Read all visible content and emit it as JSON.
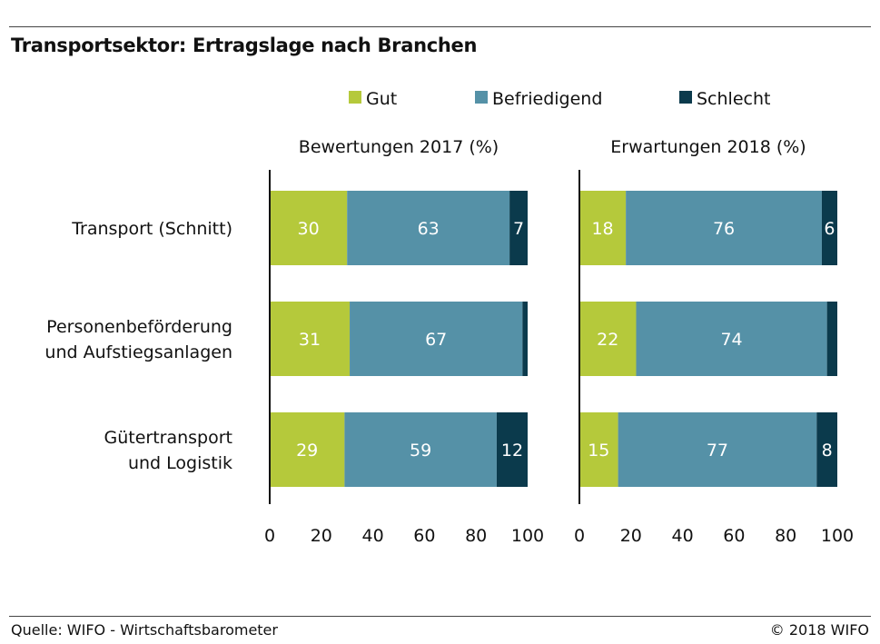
{
  "title": "Transportsektor: Ertragslage nach Branchen",
  "footer": {
    "source": "Quelle: WIFO - Wirtschaftsbarometer",
    "copyright": "© 2018 WIFO"
  },
  "chart_data": [
    {
      "type": "bar",
      "orientation": "horizontal",
      "stacked": true,
      "title": "Bewertungen 2017 (%)",
      "categories": [
        [
          "Transport (Schnitt)"
        ],
        [
          "Personenbeförderung",
          "und Aufstiegsanlagen"
        ],
        [
          "Gütertransport",
          "und Logistik"
        ]
      ],
      "series": [
        {
          "name": "Gut",
          "color": "#b5c93b",
          "values": [
            30,
            31,
            29
          ],
          "labels": [
            "30",
            "31",
            "29"
          ]
        },
        {
          "name": "Befriedigend",
          "color": "#5591a7",
          "values": [
            63,
            67,
            59
          ],
          "labels": [
            "63",
            "67",
            "59"
          ]
        },
        {
          "name": "Schlecht",
          "color": "#0b3a4c",
          "values": [
            7,
            2,
            12
          ],
          "labels": [
            "7",
            "",
            "12"
          ]
        }
      ],
      "xlim": [
        0,
        100
      ],
      "xticks": [
        "0",
        "20",
        "40",
        "60",
        "80",
        "100"
      ],
      "legend": "top"
    },
    {
      "type": "bar",
      "orientation": "horizontal",
      "stacked": true,
      "title": "Erwartungen 2018 (%)",
      "categories": [
        [
          "Transport (Schnitt)"
        ],
        [
          "Personenbeförderung",
          "und Aufstiegsanlagen"
        ],
        [
          "Gütertransport",
          "und Logistik"
        ]
      ],
      "series": [
        {
          "name": "Gut",
          "color": "#b5c93b",
          "values": [
            18,
            22,
            15
          ],
          "labels": [
            "18",
            "22",
            "15"
          ]
        },
        {
          "name": "Befriedigend",
          "color": "#5591a7",
          "values": [
            76,
            74,
            77
          ],
          "labels": [
            "76",
            "74",
            "77"
          ]
        },
        {
          "name": "Schlecht",
          "color": "#0b3a4c",
          "values": [
            6,
            4,
            8
          ],
          "labels": [
            "6",
            "",
            "8"
          ]
        }
      ],
      "xlim": [
        0,
        100
      ],
      "xticks": [
        "0",
        "20",
        "40",
        "60",
        "80",
        "100"
      ],
      "legend": "top"
    }
  ]
}
